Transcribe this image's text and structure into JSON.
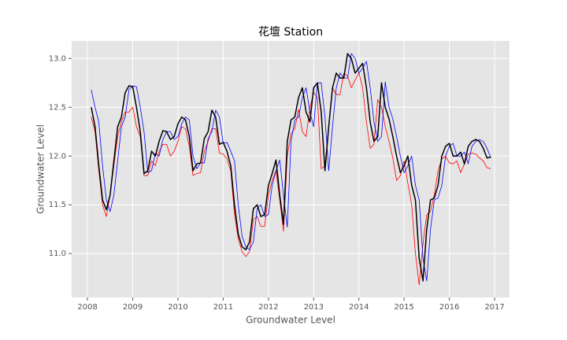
{
  "chart_data": {
    "type": "line",
    "title": "花壇 Station",
    "xlabel": "Groundwater Level",
    "ylabel": "Groundwater Level",
    "x": [
      2008.083,
      2008.167,
      2008.25,
      2008.333,
      2008.417,
      2008.5,
      2008.583,
      2008.667,
      2008.75,
      2008.833,
      2008.917,
      2009,
      2009.083,
      2009.167,
      2009.25,
      2009.333,
      2009.417,
      2009.5,
      2009.583,
      2009.667,
      2009.75,
      2009.833,
      2009.917,
      2010,
      2010.083,
      2010.167,
      2010.25,
      2010.333,
      2010.417,
      2010.5,
      2010.583,
      2010.667,
      2010.75,
      2010.833,
      2010.917,
      2011,
      2011.083,
      2011.167,
      2011.25,
      2011.333,
      2011.417,
      2011.5,
      2011.583,
      2011.667,
      2011.75,
      2011.833,
      2011.917,
      2012,
      2012.083,
      2012.167,
      2012.25,
      2012.333,
      2012.417,
      2012.5,
      2012.583,
      2012.667,
      2012.75,
      2012.833,
      2012.917,
      2013,
      2013.083,
      2013.167,
      2013.25,
      2013.333,
      2013.417,
      2013.5,
      2013.583,
      2013.667,
      2013.75,
      2013.833,
      2013.917,
      2014,
      2014.083,
      2014.167,
      2014.25,
      2014.333,
      2014.417,
      2014.5,
      2014.583,
      2014.667,
      2014.75,
      2014.833,
      2014.917,
      2015,
      2015.083,
      2015.167,
      2015.25,
      2015.333,
      2015.417,
      2015.5,
      2015.583,
      2015.667,
      2015.75,
      2015.833,
      2015.917,
      2016,
      2016.083,
      2016.167,
      2016.25,
      2016.333,
      2016.417,
      2016.5,
      2016.583,
      2016.667,
      2016.75,
      2016.833,
      2016.917
    ],
    "series": [
      {
        "color": "#ff0000",
        "width": 0.8,
        "values": [
          12.4,
          12.25,
          11.85,
          11.5,
          11.38,
          11.6,
          11.9,
          12.2,
          12.35,
          12.45,
          12.45,
          12.5,
          12.3,
          12.2,
          11.8,
          11.8,
          11.95,
          11.9,
          12.05,
          12.12,
          12.12,
          12.0,
          12.05,
          12.15,
          12.3,
          12.28,
          12.1,
          11.8,
          11.82,
          11.83,
          12.05,
          12.15,
          12.28,
          12.28,
          12.03,
          12.02,
          11.97,
          11.85,
          11.4,
          11.15,
          11.02,
          10.97,
          11.02,
          11.35,
          11.38,
          11.28,
          11.28,
          11.6,
          11.75,
          11.85,
          11.55,
          11.23,
          12.0,
          12.23,
          12.28,
          12.48,
          12.25,
          12.2,
          12.5,
          12.65,
          12.6,
          11.87,
          11.9,
          12.3,
          12.7,
          12.63,
          12.63,
          12.85,
          12.82,
          12.7,
          12.78,
          12.85,
          12.7,
          12.35,
          12.08,
          12.12,
          12.58,
          12.5,
          12.3,
          12.15,
          11.98,
          11.75,
          11.8,
          11.95,
          11.72,
          11.5,
          11.0,
          10.68,
          11.1,
          11.4,
          11.43,
          11.6,
          11.85,
          11.97,
          12.0,
          11.93,
          11.92,
          11.95,
          11.83,
          11.92,
          12.02,
          12.03,
          12.02,
          11.98,
          11.95,
          11.88,
          11.87
        ]
      },
      {
        "color": "#0000ff",
        "width": 0.8,
        "values": [
          12.68,
          12.5,
          12.35,
          11.9,
          11.55,
          11.43,
          11.6,
          11.95,
          12.3,
          12.4,
          12.68,
          12.72,
          12.71,
          12.5,
          12.25,
          11.83,
          11.85,
          12.03,
          12.0,
          12.17,
          12.25,
          12.25,
          12.17,
          12.2,
          12.33,
          12.4,
          12.37,
          12.0,
          11.87,
          11.93,
          11.93,
          12.18,
          12.25,
          12.47,
          12.4,
          12.13,
          12.14,
          12.05,
          11.95,
          11.5,
          11.18,
          11.07,
          11.04,
          11.12,
          11.46,
          11.5,
          11.38,
          11.4,
          11.7,
          11.85,
          11.96,
          11.6,
          11.27,
          12.15,
          12.37,
          12.4,
          12.6,
          12.7,
          12.45,
          12.3,
          12.75,
          12.75,
          12.4,
          11.85,
          12.3,
          12.7,
          12.85,
          12.8,
          12.8,
          13.05,
          13.0,
          12.85,
          12.9,
          12.97,
          12.7,
          12.35,
          12.15,
          12.2,
          12.76,
          12.5,
          12.38,
          12.2,
          12.0,
          11.83,
          11.9,
          12.0,
          11.7,
          11.55,
          10.95,
          10.72,
          11.25,
          11.55,
          11.57,
          11.7,
          12.0,
          12.1,
          12.13,
          12.0,
          12.0,
          12.04,
          11.92,
          12.1,
          12.15,
          12.17,
          12.15,
          12.08,
          11.98
        ]
      },
      {
        "color": "#000000",
        "width": 1.5,
        "values": [
          12.5,
          12.3,
          11.9,
          11.55,
          11.45,
          11.6,
          11.95,
          12.3,
          12.4,
          12.65,
          12.72,
          12.71,
          12.5,
          12.25,
          11.82,
          11.85,
          12.05,
          12.0,
          12.15,
          12.26,
          12.25,
          12.17,
          12.2,
          12.33,
          12.4,
          12.37,
          12.2,
          11.85,
          11.92,
          11.93,
          12.18,
          12.25,
          12.47,
          12.4,
          12.12,
          12.14,
          12.05,
          11.9,
          11.5,
          11.2,
          11.07,
          11.04,
          11.12,
          11.46,
          11.5,
          11.38,
          11.4,
          11.7,
          11.82,
          11.96,
          11.6,
          11.3,
          12.15,
          12.37,
          12.4,
          12.6,
          12.7,
          12.45,
          12.35,
          12.7,
          12.75,
          12.45,
          11.85,
          12.3,
          12.7,
          12.85,
          12.8,
          12.8,
          13.05,
          13.0,
          12.85,
          12.9,
          12.95,
          12.7,
          12.35,
          12.15,
          12.2,
          12.75,
          12.5,
          12.38,
          12.2,
          12.0,
          11.83,
          11.9,
          12.0,
          11.7,
          11.55,
          10.95,
          10.72,
          11.25,
          11.55,
          11.57,
          11.7,
          12.0,
          12.1,
          12.13,
          12.0,
          12.0,
          12.04,
          11.92,
          12.1,
          12.15,
          12.17,
          12.15,
          12.08,
          11.98,
          11.99
        ]
      }
    ],
    "xlim": [
      2007.65,
      2017.33
    ],
    "xticks": [
      2008,
      2009,
      2010,
      2011,
      2012,
      2013,
      2014,
      2015,
      2016,
      2017
    ],
    "ylim": [
      10.55,
      13.18
    ],
    "yticks": [
      {
        "value": 11,
        "label": "11.0"
      },
      {
        "value": 11.5,
        "label": "11.5"
      },
      {
        "value": 12,
        "label": "12.0"
      },
      {
        "value": 12.5,
        "label": "12.5"
      },
      {
        "value": 13,
        "label": "13.0"
      }
    ],
    "grid": true
  }
}
